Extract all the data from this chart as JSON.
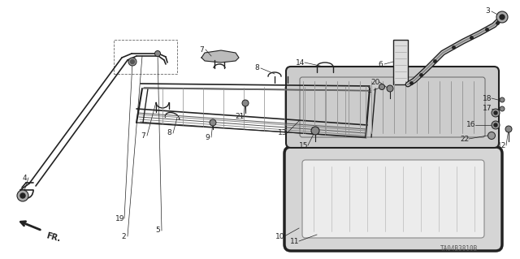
{
  "bg_color": "#ffffff",
  "fig_width": 6.4,
  "fig_height": 3.19,
  "watermark": "TA04B3810B",
  "line_color": "#222222",
  "gray_fill": "#c8c8c8",
  "light_fill": "#e8e8e8"
}
